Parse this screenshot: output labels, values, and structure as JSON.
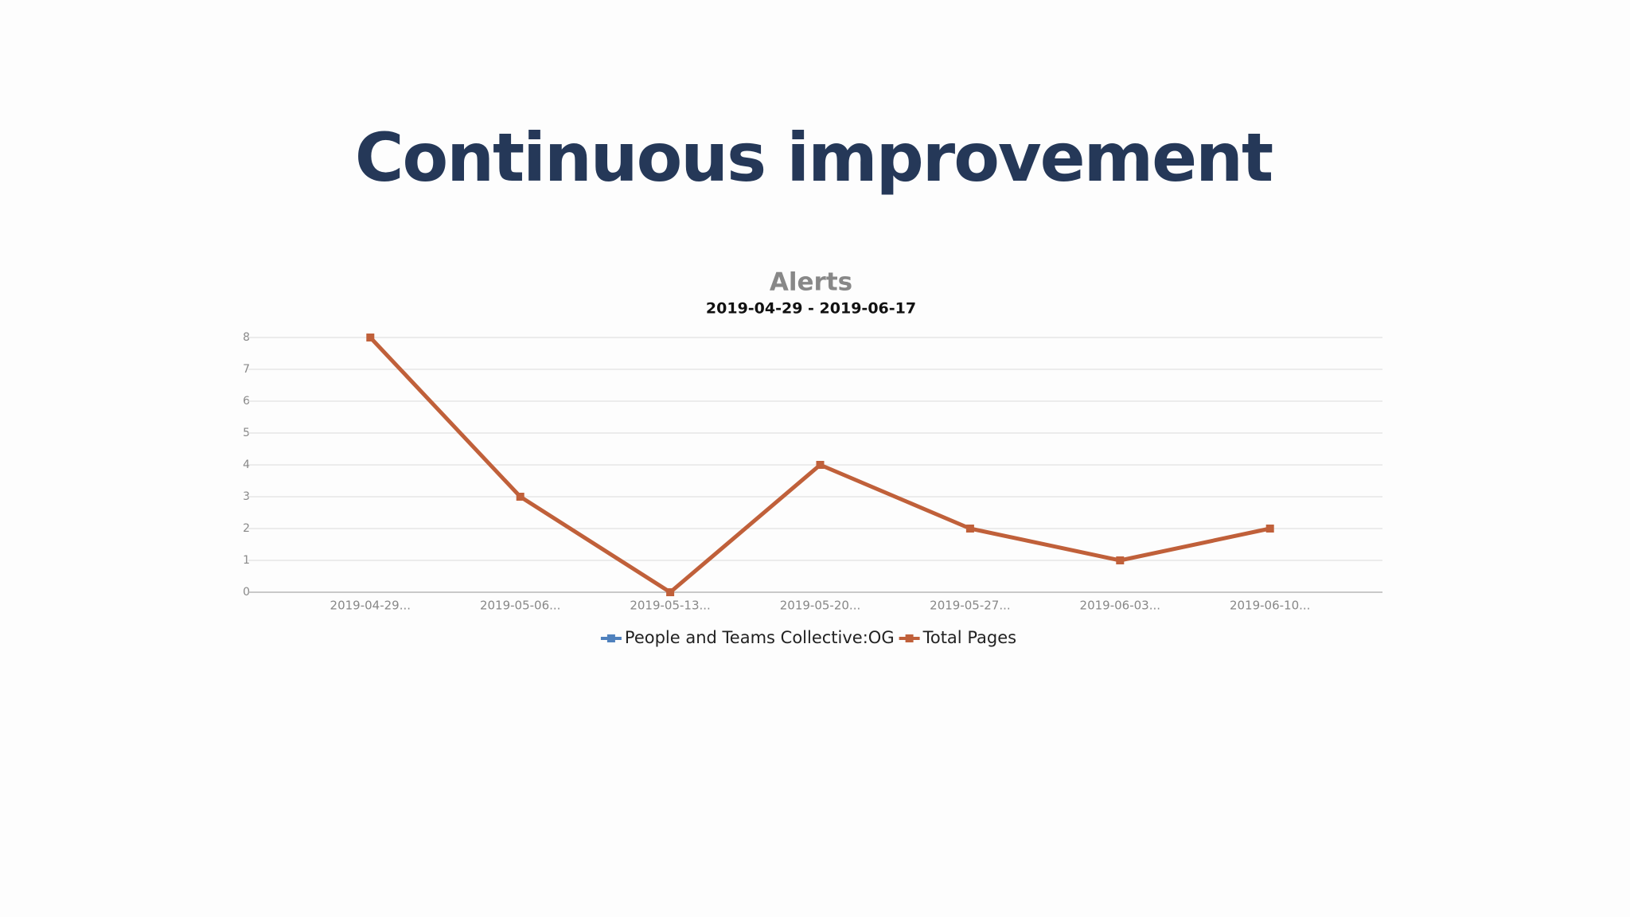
{
  "slide_title": "Continuous improvement",
  "chart_data": {
    "type": "line",
    "title": "Alerts",
    "subtitle": "2019-04-29 - 2019-06-17",
    "categories": [
      "2019-04-29...",
      "2019-05-06...",
      "2019-05-13...",
      "2019-05-20...",
      "2019-05-27...",
      "2019-06-03...",
      "2019-06-10..."
    ],
    "series": [
      {
        "name": "People and Teams Collective:OG",
        "color": "#4f81bd",
        "values": [
          null,
          null,
          null,
          null,
          null,
          null,
          null
        ]
      },
      {
        "name": "Total Pages",
        "color": "#c0603a",
        "values": [
          8,
          3,
          0,
          4,
          2,
          1,
          2
        ]
      }
    ],
    "ylim": [
      0,
      8
    ],
    "yticks": [
      0,
      1,
      2,
      3,
      4,
      5,
      6,
      7,
      8
    ],
    "grid": true,
    "legend": "bottom"
  }
}
